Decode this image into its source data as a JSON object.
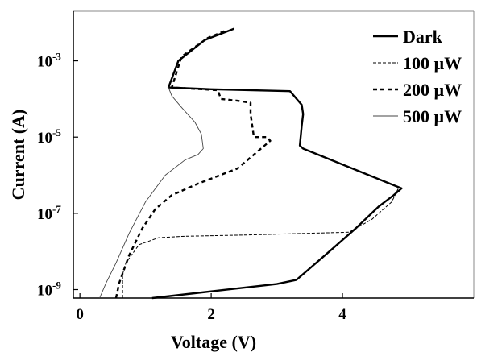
{
  "chart_data": {
    "type": "line",
    "title": "",
    "xlabel": "Voltage (V)",
    "ylabel": "Current (A)",
    "x_scale": "linear",
    "y_scale": "log",
    "xlim": [
      -0.1,
      6.0
    ],
    "ylim": [
      6e-10,
      0.02
    ],
    "grid": false,
    "legend_position": "top-right",
    "x_ticks": [
      {
        "value": 0,
        "label": "0"
      },
      {
        "value": 2,
        "label": "2"
      },
      {
        "value": 4,
        "label": "4"
      }
    ],
    "y_ticks": [
      {
        "value": 1e-09,
        "base": "10",
        "exp": "-9"
      },
      {
        "value": 1e-07,
        "base": "10",
        "exp": "-7"
      },
      {
        "value": 1e-05,
        "base": "10",
        "exp": "-5"
      },
      {
        "value": 0.001,
        "base": "10",
        "exp": "-3"
      }
    ],
    "series": [
      {
        "name": "Dark",
        "color": "#000000",
        "style": "solid-thick",
        "points": [
          [
            1.1,
            6e-10
          ],
          [
            2.0,
            9e-10
          ],
          [
            3.0,
            1.4e-09
          ],
          [
            3.3,
            1.8e-09
          ],
          [
            3.8,
            1e-08
          ],
          [
            4.2,
            4e-08
          ],
          [
            4.55,
            1.5e-07
          ],
          [
            4.78,
            3e-07
          ],
          [
            4.9,
            4.5e-07
          ],
          [
            3.4,
            5e-06
          ],
          [
            3.35,
            6e-06
          ],
          [
            3.38,
            2e-05
          ],
          [
            3.4,
            4e-05
          ],
          [
            3.38,
            7e-05
          ],
          [
            3.2,
            0.00016
          ],
          [
            2.0,
            0.00018
          ],
          [
            1.35,
            0.0002
          ],
          [
            1.5,
            0.001
          ],
          [
            1.9,
            0.0035
          ],
          [
            2.35,
            0.007
          ]
        ]
      },
      {
        "name": "100 µW",
        "color": "#000000",
        "style": "dashed-thin",
        "points": [
          [
            0.65,
            6e-10
          ],
          [
            0.65,
            2.5e-09
          ],
          [
            0.7,
            5e-09
          ],
          [
            0.9,
            1.5e-08
          ],
          [
            1.2,
            2.3e-08
          ],
          [
            1.6,
            2.5e-08
          ],
          [
            2.5,
            2.7e-08
          ],
          [
            3.5,
            3e-08
          ],
          [
            4.1,
            3.2e-08
          ],
          [
            4.45,
            7e-08
          ],
          [
            4.75,
            2e-07
          ],
          [
            4.85,
            4.5e-07
          ]
        ]
      },
      {
        "name": "200 µW",
        "color": "#000000",
        "style": "dashed-thick",
        "points": [
          [
            0.55,
            6e-10
          ],
          [
            0.6,
            1.5e-09
          ],
          [
            0.75,
            8e-09
          ],
          [
            0.95,
            4e-08
          ],
          [
            1.15,
            1.3e-07
          ],
          [
            1.4,
            3e-07
          ],
          [
            1.8,
            6e-07
          ],
          [
            2.4,
            1.5e-06
          ],
          [
            2.9,
            8e-06
          ],
          [
            2.85,
            1e-05
          ],
          [
            2.65,
            1e-05
          ],
          [
            2.6,
            4e-05
          ],
          [
            2.6,
            8e-05
          ],
          [
            2.4,
            9e-05
          ],
          [
            2.15,
            0.0001
          ],
          [
            2.1,
            0.00017
          ],
          [
            1.4,
            0.0002
          ],
          [
            1.55,
            0.0013
          ],
          [
            1.95,
            0.004
          ],
          [
            2.2,
            0.006
          ]
        ]
      },
      {
        "name": "500 µW",
        "color": "#444444",
        "style": "solid-thin",
        "points": [
          [
            0.3,
            6e-10
          ],
          [
            0.4,
            1.5e-09
          ],
          [
            0.55,
            5e-09
          ],
          [
            0.75,
            3e-08
          ],
          [
            1.0,
            2e-07
          ],
          [
            1.3,
            1e-06
          ],
          [
            1.6,
            2.5e-06
          ],
          [
            1.8,
            3.5e-06
          ],
          [
            1.88,
            5e-06
          ],
          [
            1.85,
            1.2e-05
          ],
          [
            1.75,
            2.5e-05
          ],
          [
            1.55,
            6e-05
          ],
          [
            1.4,
            0.00012
          ],
          [
            1.35,
            0.0002
          ]
        ]
      }
    ]
  }
}
